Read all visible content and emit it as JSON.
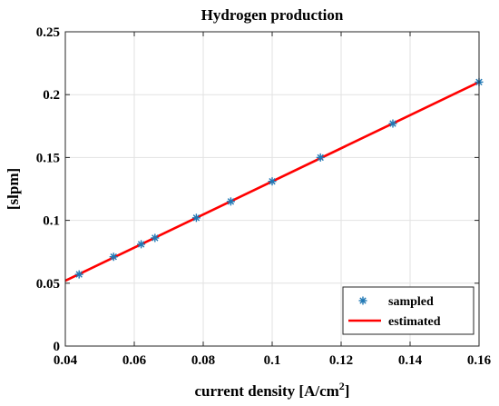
{
  "chart_data": {
    "type": "line",
    "title": "Hydrogen production",
    "xlabel": "current density [A/cm",
    "xlabel_superscript": "2",
    "xlabel_suffix": "]",
    "ylabel": "[slpm]",
    "xlim": [
      0.04,
      0.16
    ],
    "ylim": [
      0,
      0.25
    ],
    "xticks": [
      0.04,
      0.06,
      0.08,
      0.1,
      0.12,
      0.14,
      0.16
    ],
    "xtick_labels": [
      "0.04",
      "0.06",
      "0.08",
      "0.1",
      "0.12",
      "0.14",
      "0.16"
    ],
    "yticks": [
      0,
      0.05,
      0.1,
      0.15,
      0.2,
      0.25
    ],
    "ytick_labels": [
      "0",
      "0.05",
      "0.1",
      "0.15",
      "0.2",
      "0.25"
    ],
    "grid": true,
    "legend_position": "bottom-right",
    "series": [
      {
        "name": "sampled",
        "kind": "scatter",
        "marker": "asterisk",
        "color": "#1f77b4",
        "x": [
          0.044,
          0.054,
          0.062,
          0.066,
          0.078,
          0.088,
          0.1,
          0.114,
          0.135,
          0.16
        ],
        "y": [
          0.057,
          0.071,
          0.081,
          0.086,
          0.102,
          0.115,
          0.131,
          0.15,
          0.177,
          0.21
        ]
      },
      {
        "name": "estimated",
        "kind": "line",
        "color": "#ff0000",
        "x": [
          0.04,
          0.16
        ],
        "y": [
          0.052,
          0.21
        ]
      }
    ]
  }
}
